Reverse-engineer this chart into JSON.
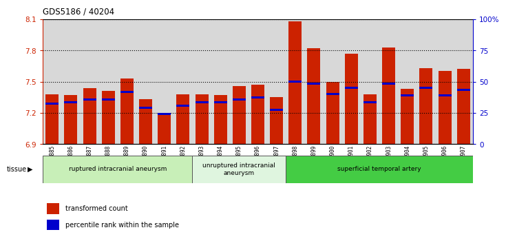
{
  "title": "GDS5186 / 40204",
  "samples": [
    "GSM1306885",
    "GSM1306886",
    "GSM1306887",
    "GSM1306888",
    "GSM1306889",
    "GSM1306890",
    "GSM1306891",
    "GSM1306892",
    "GSM1306893",
    "GSM1306894",
    "GSM1306895",
    "GSM1306896",
    "GSM1306897",
    "GSM1306898",
    "GSM1306899",
    "GSM1306900",
    "GSM1306901",
    "GSM1306902",
    "GSM1306903",
    "GSM1306904",
    "GSM1306905",
    "GSM1306906",
    "GSM1306907"
  ],
  "red_values": [
    7.38,
    7.37,
    7.44,
    7.41,
    7.53,
    7.33,
    7.19,
    7.38,
    7.38,
    7.37,
    7.46,
    7.47,
    7.35,
    8.08,
    7.82,
    7.5,
    7.77,
    7.38,
    7.83,
    7.43,
    7.63,
    7.6,
    7.62
  ],
  "blue_values": [
    7.29,
    7.3,
    7.33,
    7.33,
    7.4,
    7.25,
    7.19,
    7.27,
    7.3,
    7.3,
    7.33,
    7.35,
    7.23,
    7.5,
    7.48,
    7.38,
    7.44,
    7.3,
    7.48,
    7.37,
    7.44,
    7.37,
    7.42
  ],
  "ymin": 6.9,
  "ymax": 8.1,
  "yticks": [
    6.9,
    7.2,
    7.5,
    7.8,
    8.1
  ],
  "ytick_labels": [
    "6.9",
    "7.2",
    "7.5",
    "7.8",
    "8.1"
  ],
  "right_yticks": [
    0,
    25,
    50,
    75,
    100
  ],
  "right_ytick_labels": [
    "0",
    "25",
    "50",
    "75",
    "100%"
  ],
  "groups": [
    {
      "label": "ruptured intracranial aneurysm",
      "start": 0,
      "end": 8,
      "color": "#c8efb8"
    },
    {
      "label": "unruptured intracranial\naneurysm",
      "start": 8,
      "end": 13,
      "color": "#dff5df"
    },
    {
      "label": "superficial temporal artery",
      "start": 13,
      "end": 23,
      "color": "#44cc44"
    }
  ],
  "bar_color": "#cc2200",
  "blue_color": "#0000cc",
  "cell_bg": "#d8d8d8",
  "plot_bg": "#ffffff",
  "left_axis_color": "#cc2200",
  "right_axis_color": "#0000cc",
  "legend_items": [
    {
      "label": "transformed count",
      "color": "#cc2200"
    },
    {
      "label": "percentile rank within the sample",
      "color": "#0000cc"
    }
  ]
}
